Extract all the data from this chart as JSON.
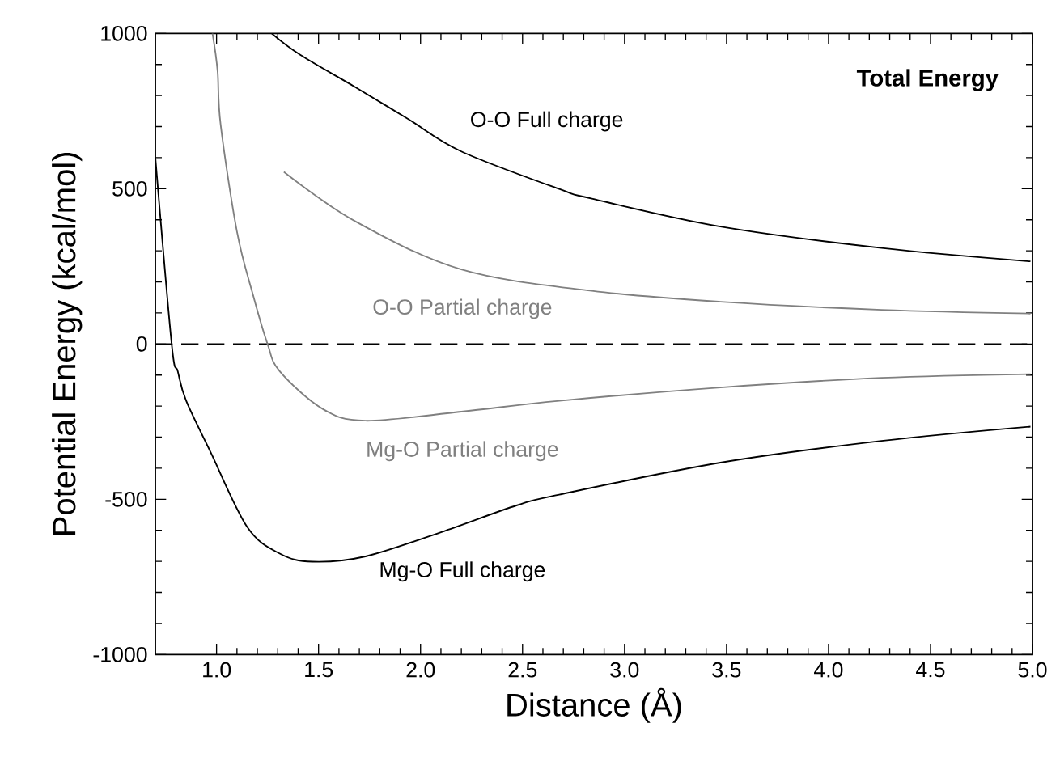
{
  "chart_data": {
    "type": "line",
    "title": "Total Energy",
    "xlabel": "Distance  (Å)",
    "ylabel": "Potential Energy  (kcal/mol)",
    "xlim": [
      0.7,
      5.0
    ],
    "ylim": [
      -1000,
      1000
    ],
    "xticks": [
      {
        "value": 1.0,
        "label": "1.0"
      },
      {
        "value": 1.5,
        "label": "1.5"
      },
      {
        "value": 2.0,
        "label": "2.0"
      },
      {
        "value": 2.5,
        "label": "2.5"
      },
      {
        "value": 3.0,
        "label": "3.0"
      },
      {
        "value": 3.5,
        "label": "3.5"
      },
      {
        "value": 4.0,
        "label": "4.0"
      },
      {
        "value": 4.5,
        "label": "4.5"
      },
      {
        "value": 5.0,
        "label": "5.0"
      }
    ],
    "yticks": [
      -1000,
      -500,
      0,
      500,
      1000
    ],
    "grid": false,
    "line_style": "solid",
    "series": [
      {
        "name": "O-O Full charge",
        "color": "#000000",
        "x": [
          1.27,
          1.41,
          1.68,
          1.94,
          2.2,
          2.68,
          2.84,
          3.47,
          4.26,
          4.99
        ],
        "values": [
          1000,
          931,
          827,
          724,
          620,
          499,
          468,
          378,
          309,
          266
        ]
      },
      {
        "name": "O-O Partial charge",
        "color": "#808080",
        "x": [
          1.33,
          1.68,
          2.2,
          2.84,
          3.47,
          4.26,
          4.99
        ],
        "values": [
          554,
          395,
          240,
          171,
          136,
          110,
          98
        ]
      },
      {
        "name": "Mg-O Partial charge",
        "color": "#808080",
        "x": [
          0.98,
          1.005,
          1.02,
          1.1,
          1.18,
          1.25,
          1.31,
          1.52,
          1.73,
          2.2,
          2.68,
          3.47,
          4.26,
          4.99
        ],
        "values": [
          1000,
          879,
          706,
          362,
          155,
          0,
          -88,
          -209,
          -247,
          -218,
          -183,
          -140,
          -109,
          -97
        ]
      },
      {
        "name": "Mg-O Full charge",
        "color": "#000000",
        "x": [
          0.7,
          0.78,
          0.81,
          0.85,
          0.97,
          1.15,
          1.31,
          1.47,
          1.73,
          2.1,
          2.47,
          2.68,
          3.47,
          4.26,
          4.99
        ],
        "values": [
          600,
          0,
          -88,
          -181,
          -347,
          -589,
          -675,
          -701,
          -684,
          -606,
          -520,
          -485,
          -382,
          -312,
          -266
        ]
      }
    ],
    "ref_lines": [
      {
        "axis": "y",
        "value": 0,
        "color": "#000000",
        "line_style": "dashed"
      }
    ]
  }
}
